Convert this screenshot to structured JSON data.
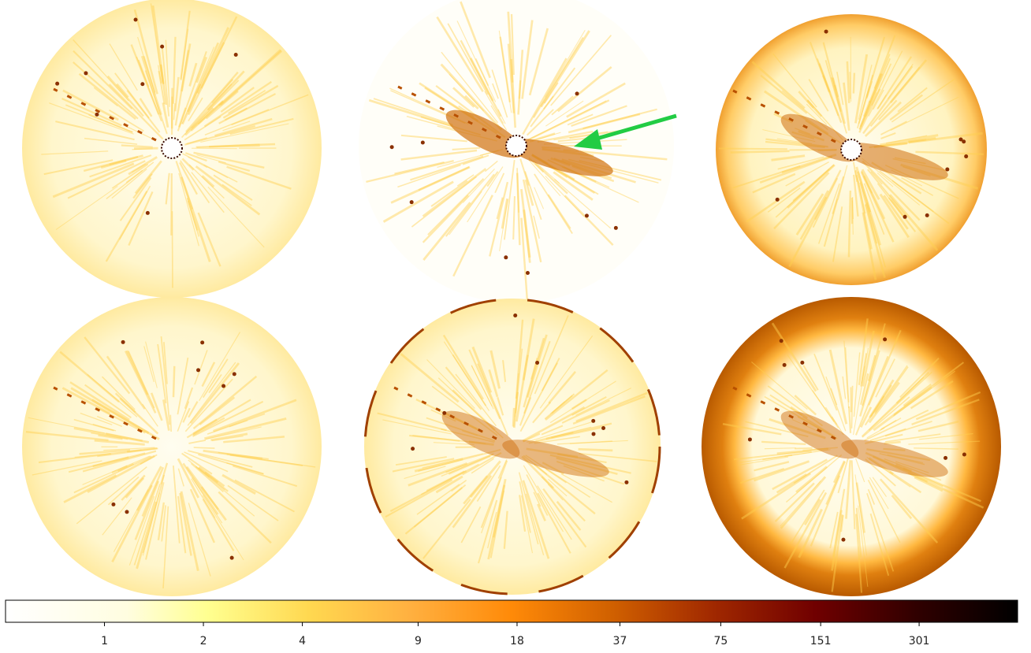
{
  "colorbar": {
    "scale": "log",
    "clim": [
      0.5,
      600
    ],
    "ticks": [
      1,
      2,
      4,
      9,
      18,
      37,
      75,
      151,
      301
    ]
  }
}
